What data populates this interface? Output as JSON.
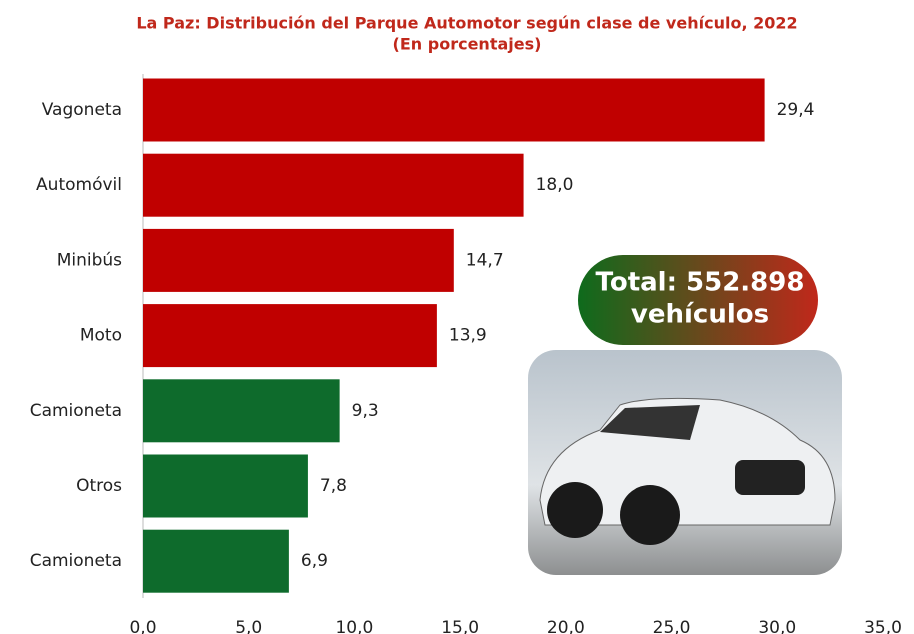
{
  "chart_data": {
    "type": "bar",
    "orientation": "horizontal",
    "title": "La Paz: Distribución del Parque Automotor según clase de vehículo, 2022",
    "subtitle": "(En porcentajes)",
    "categories": [
      "Vagoneta",
      "Automóvil",
      "Minibús",
      "Moto",
      "Camioneta",
      "Otros",
      "Camioneta"
    ],
    "values": [
      29.4,
      18.0,
      14.7,
      13.9,
      9.3,
      7.8,
      6.9
    ],
    "value_labels": [
      "29,4",
      "18,0",
      "14,7",
      "13,9",
      "9,3",
      "7,8",
      "6,9"
    ],
    "colors": [
      "#c00000",
      "#c00000",
      "#c00000",
      "#c00000",
      "#0e6b2c",
      "#0e6b2c",
      "#0e6b2c"
    ],
    "xlim": [
      0,
      35
    ],
    "xticks": [
      {
        "value": 0,
        "label": "0,0"
      },
      {
        "value": 5,
        "label": "5,0"
      },
      {
        "value": 10,
        "label": "10,0"
      },
      {
        "value": 15,
        "label": "15,0"
      },
      {
        "value": 20,
        "label": "20,0"
      },
      {
        "value": 25,
        "label": "25,0"
      },
      {
        "value": 30,
        "label": "30,0"
      },
      {
        "value": 35,
        "label": "35,0"
      }
    ],
    "grid": false,
    "annotation": [
      "Total: 552.898",
      "vehículos"
    ]
  }
}
